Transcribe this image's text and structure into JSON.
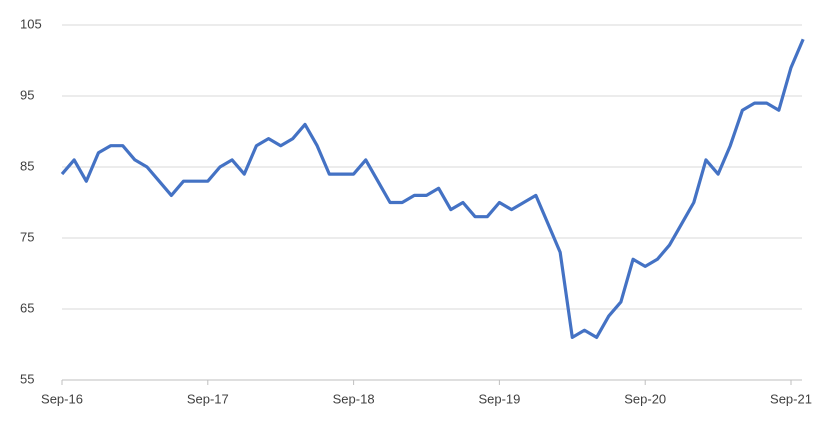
{
  "chart_data": {
    "type": "line",
    "categories": [
      "Sep-16",
      null,
      null,
      null,
      null,
      null,
      null,
      null,
      null,
      null,
      null,
      null,
      "Sep-17",
      null,
      null,
      null,
      null,
      null,
      null,
      null,
      null,
      null,
      null,
      null,
      "Sep-18",
      null,
      null,
      null,
      null,
      null,
      null,
      null,
      null,
      null,
      null,
      null,
      "Sep-19",
      null,
      null,
      null,
      null,
      null,
      null,
      null,
      null,
      null,
      null,
      null,
      "Sep-20",
      null,
      null,
      null,
      null,
      null,
      null,
      null,
      null,
      null,
      null,
      null,
      "Sep-21",
      null
    ],
    "series": [
      {
        "color": "#4472c4",
        "values": [
          84,
          86,
          83,
          87,
          88,
          88,
          86,
          85,
          83,
          81,
          83,
          83,
          83,
          85,
          86,
          84,
          88,
          89,
          88,
          89,
          91,
          88,
          84,
          84,
          84,
          86,
          83,
          80,
          80,
          81,
          81,
          82,
          79,
          80,
          78,
          78,
          80,
          79,
          80,
          81,
          77,
          73,
          61,
          62,
          61,
          64,
          66,
          72,
          71,
          72,
          74,
          77,
          80,
          86,
          84,
          88,
          93,
          94,
          94,
          93,
          99,
          103
        ]
      }
    ],
    "ylim": [
      55,
      105
    ],
    "yticks": [
      55,
      65,
      75,
      85,
      95,
      105
    ],
    "grid": true
  }
}
